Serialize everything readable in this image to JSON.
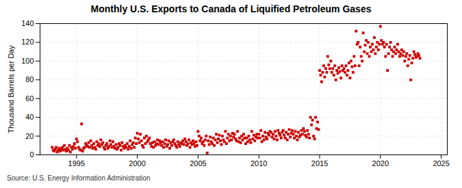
{
  "chart_data": {
    "type": "scatter",
    "title": "Monthly U.S. Exports to Canada of Liquified Petroleum Gases",
    "ylabel": "Thousand Barrels per Day",
    "annotations": [
      "Source: U.S. Energy Information Administration"
    ],
    "xlim": [
      1992.0,
      2025.5
    ],
    "ylim": [
      0,
      140
    ],
    "xticks": [
      1995,
      2000,
      2005,
      2010,
      2015,
      2020,
      2025
    ],
    "yticks": [
      0,
      20,
      40,
      60,
      80,
      100,
      120,
      140
    ],
    "grid": true,
    "color": "#CC0000",
    "marker": "square",
    "x": [
      1993.0,
      1993.083,
      1993.167,
      1993.25,
      1993.333,
      1993.417,
      1993.5,
      1993.583,
      1993.667,
      1993.75,
      1993.833,
      1993.917,
      1994.0,
      1994.083,
      1994.167,
      1994.25,
      1994.333,
      1994.417,
      1994.5,
      1994.583,
      1994.667,
      1994.75,
      1994.833,
      1994.917,
      1995.0,
      1995.083,
      1995.167,
      1995.25,
      1995.333,
      1995.417,
      1995.5,
      1995.583,
      1995.667,
      1995.75,
      1995.833,
      1995.917,
      1996.0,
      1996.083,
      1996.167,
      1996.25,
      1996.333,
      1996.417,
      1996.5,
      1996.583,
      1996.667,
      1996.75,
      1996.833,
      1996.917,
      1997.0,
      1997.083,
      1997.167,
      1997.25,
      1997.333,
      1997.417,
      1997.5,
      1997.583,
      1997.667,
      1997.75,
      1997.833,
      1997.917,
      1998.0,
      1998.083,
      1998.167,
      1998.25,
      1998.333,
      1998.417,
      1998.5,
      1998.583,
      1998.667,
      1998.75,
      1998.833,
      1998.917,
      1999.0,
      1999.083,
      1999.167,
      1999.25,
      1999.333,
      1999.417,
      1999.5,
      1999.583,
      1999.667,
      1999.75,
      1999.833,
      1999.917,
      2000.0,
      2000.083,
      2000.167,
      2000.25,
      2000.333,
      2000.417,
      2000.5,
      2000.583,
      2000.667,
      2000.75,
      2000.833,
      2000.917,
      2001.0,
      2001.083,
      2001.167,
      2001.25,
      2001.333,
      2001.417,
      2001.5,
      2001.583,
      2001.667,
      2001.75,
      2001.833,
      2001.917,
      2002.0,
      2002.083,
      2002.167,
      2002.25,
      2002.333,
      2002.417,
      2002.5,
      2002.583,
      2002.667,
      2002.75,
      2002.833,
      2002.917,
      2003.0,
      2003.083,
      2003.167,
      2003.25,
      2003.333,
      2003.417,
      2003.5,
      2003.583,
      2003.667,
      2003.75,
      2003.833,
      2003.917,
      2004.0,
      2004.083,
      2004.167,
      2004.25,
      2004.333,
      2004.417,
      2004.5,
      2004.583,
      2004.667,
      2004.75,
      2004.833,
      2004.917,
      2005.0,
      2005.083,
      2005.167,
      2005.25,
      2005.333,
      2005.417,
      2005.5,
      2005.583,
      2005.667,
      2005.75,
      2005.833,
      2005.917,
      2006.0,
      2006.083,
      2006.167,
      2006.25,
      2006.333,
      2006.417,
      2006.5,
      2006.583,
      2006.667,
      2006.75,
      2006.833,
      2006.917,
      2007.0,
      2007.083,
      2007.167,
      2007.25,
      2007.333,
      2007.417,
      2007.5,
      2007.583,
      2007.667,
      2007.75,
      2007.833,
      2007.917,
      2008.0,
      2008.083,
      2008.167,
      2008.25,
      2008.333,
      2008.417,
      2008.5,
      2008.583,
      2008.667,
      2008.75,
      2008.833,
      2008.917,
      2009.0,
      2009.083,
      2009.167,
      2009.25,
      2009.333,
      2009.417,
      2009.5,
      2009.583,
      2009.667,
      2009.75,
      2009.833,
      2009.917,
      2010.0,
      2010.083,
      2010.167,
      2010.25,
      2010.333,
      2010.417,
      2010.5,
      2010.583,
      2010.667,
      2010.75,
      2010.833,
      2010.917,
      2011.0,
      2011.083,
      2011.167,
      2011.25,
      2011.333,
      2011.417,
      2011.5,
      2011.583,
      2011.667,
      2011.75,
      2011.833,
      2011.917,
      2012.0,
      2012.083,
      2012.167,
      2012.25,
      2012.333,
      2012.417,
      2012.5,
      2012.583,
      2012.667,
      2012.75,
      2012.833,
      2012.917,
      2013.0,
      2013.083,
      2013.167,
      2013.25,
      2013.333,
      2013.417,
      2013.5,
      2013.583,
      2013.667,
      2013.75,
      2013.833,
      2013.917,
      2014.0,
      2014.083,
      2014.167,
      2014.25,
      2014.333,
      2014.417,
      2014.5,
      2014.583,
      2014.667,
      2014.75,
      2014.833,
      2014.917,
      2015.0,
      2015.083,
      2015.167,
      2015.25,
      2015.333,
      2015.417,
      2015.5,
      2015.583,
      2015.667,
      2015.75,
      2015.833,
      2015.917,
      2016.0,
      2016.083,
      2016.167,
      2016.25,
      2016.333,
      2016.417,
      2016.5,
      2016.583,
      2016.667,
      2016.75,
      2016.833,
      2016.917,
      2017.0,
      2017.083,
      2017.167,
      2017.25,
      2017.333,
      2017.417,
      2017.5,
      2017.583,
      2017.667,
      2017.75,
      2017.833,
      2017.917,
      2018.0,
      2018.083,
      2018.167,
      2018.25,
      2018.333,
      2018.417,
      2018.5,
      2018.583,
      2018.667,
      2018.75,
      2018.833,
      2018.917,
      2019.0,
      2019.083,
      2019.167,
      2019.25,
      2019.333,
      2019.417,
      2019.5,
      2019.583,
      2019.667,
      2019.75,
      2019.833,
      2019.917,
      2020.0,
      2020.083,
      2020.167,
      2020.25,
      2020.333,
      2020.417,
      2020.5,
      2020.583,
      2020.667,
      2020.75,
      2020.833,
      2020.917,
      2021.0,
      2021.083,
      2021.167,
      2021.25,
      2021.333,
      2021.417,
      2021.5,
      2021.583,
      2021.667,
      2021.75,
      2021.833,
      2021.917,
      2022.0,
      2022.083,
      2022.167,
      2022.25,
      2022.333,
      2022.417,
      2022.5,
      2022.583,
      2022.667,
      2022.75,
      2022.833,
      2022.917,
      2023.0,
      2023.083,
      2023.167,
      2023.25
    ],
    "values": [
      8,
      5,
      4,
      6,
      8,
      3,
      5,
      7,
      4,
      6,
      8,
      5,
      10,
      6,
      4,
      7,
      5,
      10,
      3,
      8,
      6,
      9,
      12,
      7,
      17,
      14,
      8,
      6,
      5,
      33,
      4,
      7,
      8,
      12,
      10,
      9,
      13,
      8,
      15,
      10,
      7,
      12,
      8,
      6,
      14,
      10,
      12,
      9,
      16,
      11,
      13,
      8,
      6,
      10,
      12,
      7,
      9,
      15,
      11,
      8,
      14,
      9,
      7,
      11,
      6,
      8,
      12,
      10,
      5,
      13,
      9,
      7,
      10,
      8,
      12,
      6,
      9,
      15,
      7,
      11,
      13,
      8,
      18,
      12,
      23,
      17,
      13,
      22,
      15,
      10,
      8,
      18,
      12,
      20,
      14,
      16,
      18,
      12,
      9,
      13,
      8,
      14,
      10,
      12,
      16,
      11,
      15,
      13,
      10,
      14,
      8,
      12,
      16,
      9,
      11,
      15,
      7,
      13,
      10,
      14,
      16,
      12,
      10,
      8,
      14,
      11,
      9,
      13,
      12,
      15,
      11,
      17,
      14,
      10,
      12,
      16,
      8,
      13,
      11,
      15,
      12,
      9,
      14,
      10,
      25,
      20,
      15,
      18,
      12,
      14,
      10,
      16,
      20,
      2,
      15,
      11,
      19,
      14,
      12,
      18,
      10,
      16,
      22,
      13,
      17,
      21,
      15,
      11,
      20,
      16,
      14,
      25,
      12,
      18,
      22,
      15,
      20,
      16,
      23,
      19,
      22,
      17,
      15,
      25,
      14,
      18,
      13,
      20,
      16,
      22,
      18,
      12,
      18,
      14,
      20,
      16,
      13,
      25,
      17,
      21,
      15,
      19,
      22,
      18,
      22,
      18,
      26,
      14,
      20,
      16,
      24,
      19,
      17,
      23,
      21,
      25,
      24,
      19,
      22,
      17,
      25,
      20,
      16,
      26,
      23,
      21,
      18,
      24,
      26,
      21,
      18,
      24,
      16,
      22,
      27,
      19,
      23,
      26,
      22,
      18,
      25,
      20,
      16,
      24,
      19,
      21,
      26,
      22,
      28,
      25,
      21,
      19,
      26,
      22,
      18,
      40,
      32,
      37,
      20,
      17,
      40,
      28,
      35,
      27,
      90,
      85,
      78,
      88,
      95,
      83,
      92,
      88,
      105,
      96,
      92,
      100,
      88,
      92,
      85,
      95,
      80,
      90,
      87,
      93,
      89,
      82,
      95,
      90,
      92,
      88,
      95,
      85,
      90,
      98,
      82,
      100,
      94,
      88,
      105,
      95,
      132,
      118,
      120,
      95,
      115,
      105,
      100,
      130,
      110,
      117,
      122,
      108,
      120,
      105,
      115,
      110,
      118,
      112,
      125,
      108,
      115,
      120,
      112,
      118,
      137,
      122,
      118,
      120,
      115,
      105,
      118,
      90,
      108,
      115,
      120,
      112,
      105,
      110,
      115,
      108,
      112,
      118,
      110,
      105,
      108,
      112,
      106,
      110,
      100,
      105,
      108,
      95,
      102,
      106,
      80,
      98,
      103,
      110,
      107,
      104,
      105,
      108,
      106,
      103
    ]
  }
}
